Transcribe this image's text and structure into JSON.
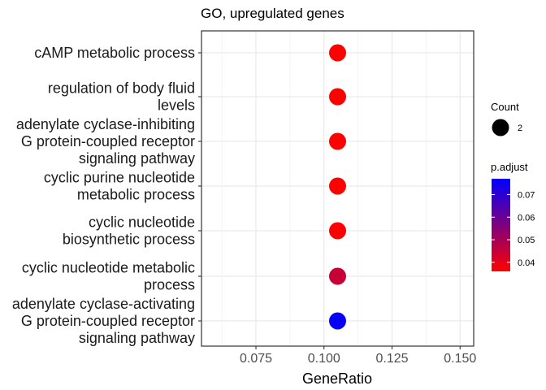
{
  "chart_data": {
    "type": "scatter",
    "title": "GO, upregulated genes",
    "xlabel": "GeneRatio",
    "ylabel": "",
    "xlim": [
      0.055,
      0.155
    ],
    "xticks": [
      0.075,
      0.1,
      0.125,
      0.15
    ],
    "xtick_labels": [
      "0.075",
      "0.100",
      "0.125",
      "0.150"
    ],
    "grid": true,
    "categories": [
      {
        "lines": [
          "cAMP metabolic process"
        ],
        "gene_ratio": 0.105,
        "count": 2,
        "p_adjust": 0.036
      },
      {
        "lines": [
          "regulation of body fluid",
          "levels"
        ],
        "gene_ratio": 0.105,
        "count": 2,
        "p_adjust": 0.036
      },
      {
        "lines": [
          "adenylate cyclase-inhibiting",
          "G protein-coupled receptor",
          "signaling pathway"
        ],
        "gene_ratio": 0.105,
        "count": 2,
        "p_adjust": 0.036
      },
      {
        "lines": [
          "cyclic purine nucleotide",
          "metabolic process"
        ],
        "gene_ratio": 0.105,
        "count": 2,
        "p_adjust": 0.036
      },
      {
        "lines": [
          "cyclic nucleotide",
          "biosynthetic process"
        ],
        "gene_ratio": 0.105,
        "count": 2,
        "p_adjust": 0.036
      },
      {
        "lines": [
          "cyclic nucleotide metabolic",
          "process"
        ],
        "gene_ratio": 0.105,
        "count": 2,
        "p_adjust": 0.045
      },
      {
        "lines": [
          "adenylate cyclase-activating",
          "G protein-coupled receptor",
          "signaling pathway"
        ],
        "gene_ratio": 0.105,
        "count": 2,
        "p_adjust": 0.076
      }
    ],
    "legend": {
      "size_title": "Count",
      "size_label": "2",
      "color_title": "p.adjust",
      "color_ticks": [
        0.04,
        0.05,
        0.06,
        0.07
      ],
      "color_tick_labels": [
        "0.04",
        "0.05",
        "0.06",
        "0.07"
      ],
      "color_range": [
        0.036,
        0.077
      ],
      "color_low": "#ff0000",
      "color_high": "#0000ff",
      "placement": "right"
    }
  }
}
